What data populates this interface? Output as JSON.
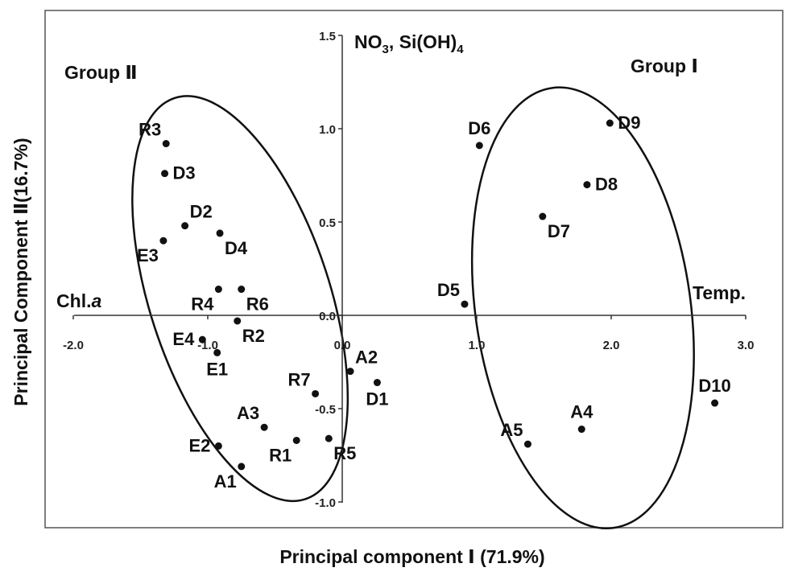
{
  "chart_data": {
    "type": "scatter",
    "xlabel": "Principal component Ⅰ (71.9%)",
    "ylabel": "Principal Component Ⅱ(16.7%)",
    "xlim": [
      -2.0,
      3.0
    ],
    "ylim": [
      -1.0,
      1.5
    ],
    "x_ticks": [
      {
        "value": -2.0,
        "label": "-2.0"
      },
      {
        "value": -1.0,
        "label": "-1.0"
      },
      {
        "value": 0.0,
        "label": "0.0"
      },
      {
        "value": 1.0,
        "label": "1.0"
      },
      {
        "value": 2.0,
        "label": "2.0"
      },
      {
        "value": 3.0,
        "label": "3.0"
      }
    ],
    "y_ticks": [
      {
        "value": 1.5,
        "label": "1.5"
      },
      {
        "value": 1.0,
        "label": "1.0"
      },
      {
        "value": 0.5,
        "label": "0.5"
      },
      {
        "value": 0.0,
        "label": "0.0"
      },
      {
        "value": -0.5,
        "label": "-0.5"
      },
      {
        "value": -1.0,
        "label": "-1.0"
      }
    ],
    "grid": false,
    "points": [
      {
        "label": "R3",
        "x": -1.31,
        "y": 0.92,
        "pos": "tl"
      },
      {
        "label": "D3",
        "x": -1.32,
        "y": 0.76,
        "pos": "r"
      },
      {
        "label": "D2",
        "x": -1.17,
        "y": 0.48,
        "pos": "tr"
      },
      {
        "label": "D4",
        "x": -0.91,
        "y": 0.44,
        "pos": "br"
      },
      {
        "label": "E3",
        "x": -1.33,
        "y": 0.4,
        "pos": "bl"
      },
      {
        "label": "R4",
        "x": -0.92,
        "y": 0.14,
        "pos": "bl"
      },
      {
        "label": "R6",
        "x": -0.75,
        "y": 0.14,
        "pos": "br"
      },
      {
        "label": "R2",
        "x": -0.78,
        "y": -0.03,
        "pos": "br"
      },
      {
        "label": "E4",
        "x": -1.04,
        "y": -0.13,
        "pos": "l"
      },
      {
        "label": "E1",
        "x": -0.93,
        "y": -0.2,
        "pos": "b"
      },
      {
        "label": "R7",
        "x": -0.2,
        "y": -0.42,
        "pos": "tl"
      },
      {
        "label": "A2",
        "x": 0.06,
        "y": -0.3,
        "pos": "tr"
      },
      {
        "label": "D1",
        "x": 0.26,
        "y": -0.36,
        "pos": "b"
      },
      {
        "label": "A3",
        "x": -0.58,
        "y": -0.6,
        "pos": "tl"
      },
      {
        "label": "E2",
        "x": -0.92,
        "y": -0.7,
        "pos": "l"
      },
      {
        "label": "R1",
        "x": -0.34,
        "y": -0.67,
        "pos": "bl"
      },
      {
        "label": "R5",
        "x": -0.1,
        "y": -0.66,
        "pos": "br"
      },
      {
        "label": "A1",
        "x": -0.75,
        "y": -0.81,
        "pos": "bl"
      },
      {
        "label": "D6",
        "x": 1.02,
        "y": 0.91,
        "pos": "t"
      },
      {
        "label": "D9",
        "x": 1.99,
        "y": 1.03,
        "pos": "r"
      },
      {
        "label": "D8",
        "x": 1.82,
        "y": 0.7,
        "pos": "r"
      },
      {
        "label": "D7",
        "x": 1.49,
        "y": 0.53,
        "pos": "br"
      },
      {
        "label": "D5",
        "x": 0.91,
        "y": 0.06,
        "pos": "tl"
      },
      {
        "label": "A4",
        "x": 1.78,
        "y": -0.61,
        "pos": "t"
      },
      {
        "label": "A5",
        "x": 1.38,
        "y": -0.69,
        "pos": "tl"
      },
      {
        "label": "D10",
        "x": 2.77,
        "y": -0.47,
        "pos": "t"
      }
    ],
    "annotations": {
      "y_axis_top": "NO₃, Si(OH)₄",
      "x_axis_left": "Chl.a",
      "x_axis_right": "Temp."
    },
    "groups": [
      {
        "label": "Group Ⅱ",
        "center": [
          -0.76,
          0.09
        ],
        "rx_units": 0.67,
        "ry_units": 1.13,
        "rotation_deg": -18
      },
      {
        "label": "Group Ⅰ",
        "center": [
          1.79,
          0.04
        ],
        "rx_units": 0.8,
        "ry_units": 1.19,
        "rotation_deg": -8
      }
    ]
  }
}
